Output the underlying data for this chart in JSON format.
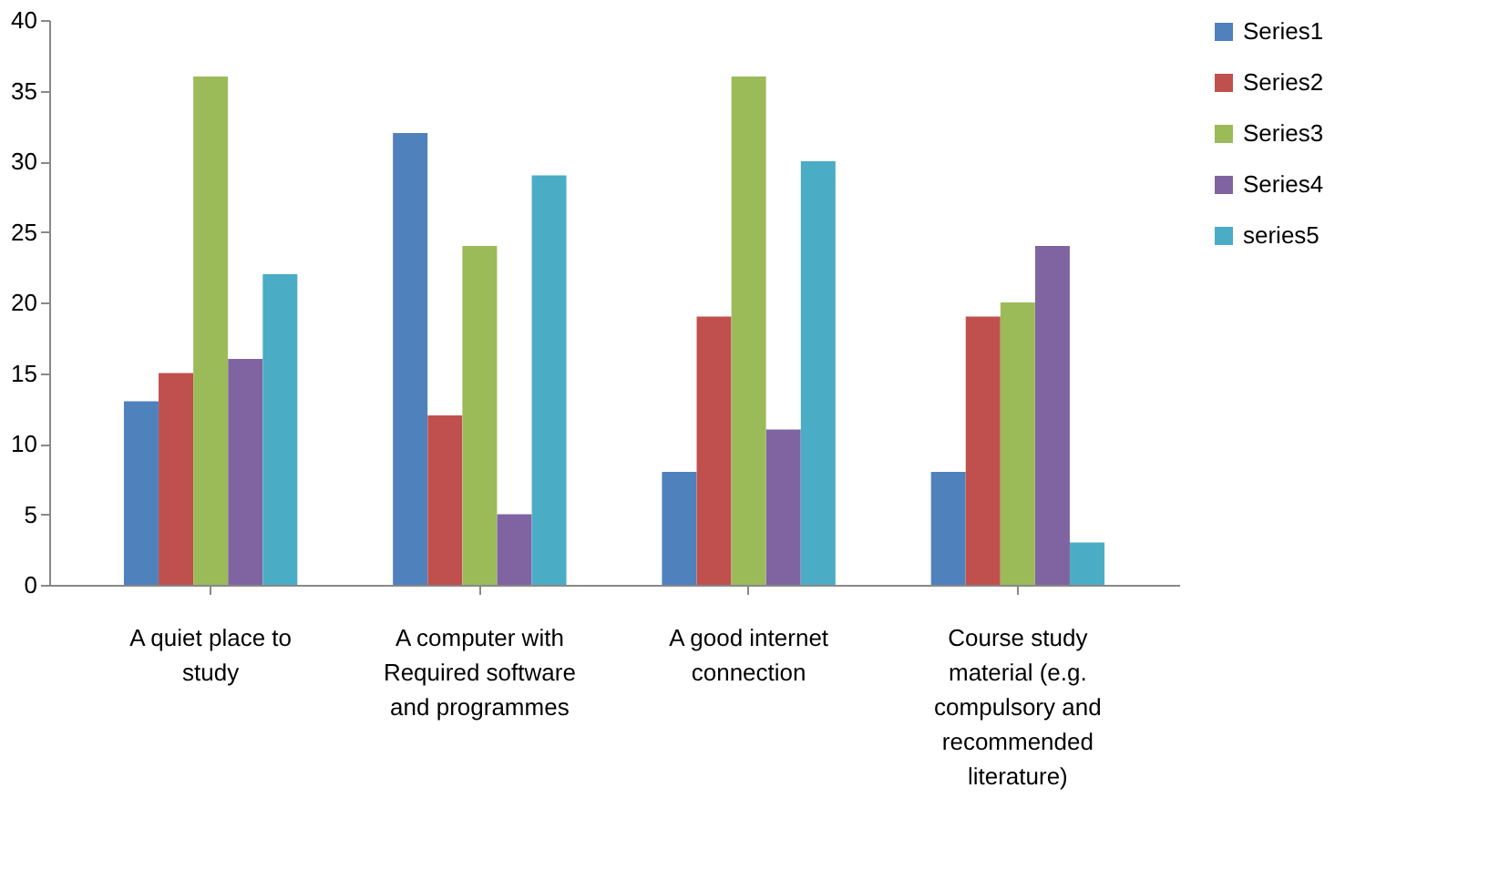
{
  "chart_data": {
    "type": "bar",
    "categories": [
      "A quiet place to study",
      "A computer with Required software and programmes",
      "A good internet connection",
      "Course study material (e.g. compulsory and recommended literature)"
    ],
    "series": [
      {
        "name": "Series1",
        "color": "#4f81bd",
        "values": [
          13,
          32,
          8,
          8
        ]
      },
      {
        "name": "Series2",
        "color": "#c0504d",
        "values": [
          15,
          12,
          19,
          19
        ]
      },
      {
        "name": "Series3",
        "color": "#9bbb59",
        "values": [
          36,
          24,
          36,
          20
        ]
      },
      {
        "name": "Series4",
        "color": "#8064a2",
        "values": [
          16,
          5,
          11,
          24
        ]
      },
      {
        "name": "series5",
        "color": "#4bacc6",
        "values": [
          22,
          29,
          30,
          3
        ]
      }
    ],
    "ylim": [
      0,
      40
    ],
    "yticks": [
      0,
      5,
      10,
      15,
      20,
      25,
      30,
      35,
      40
    ],
    "grid": false,
    "legend": "right"
  }
}
